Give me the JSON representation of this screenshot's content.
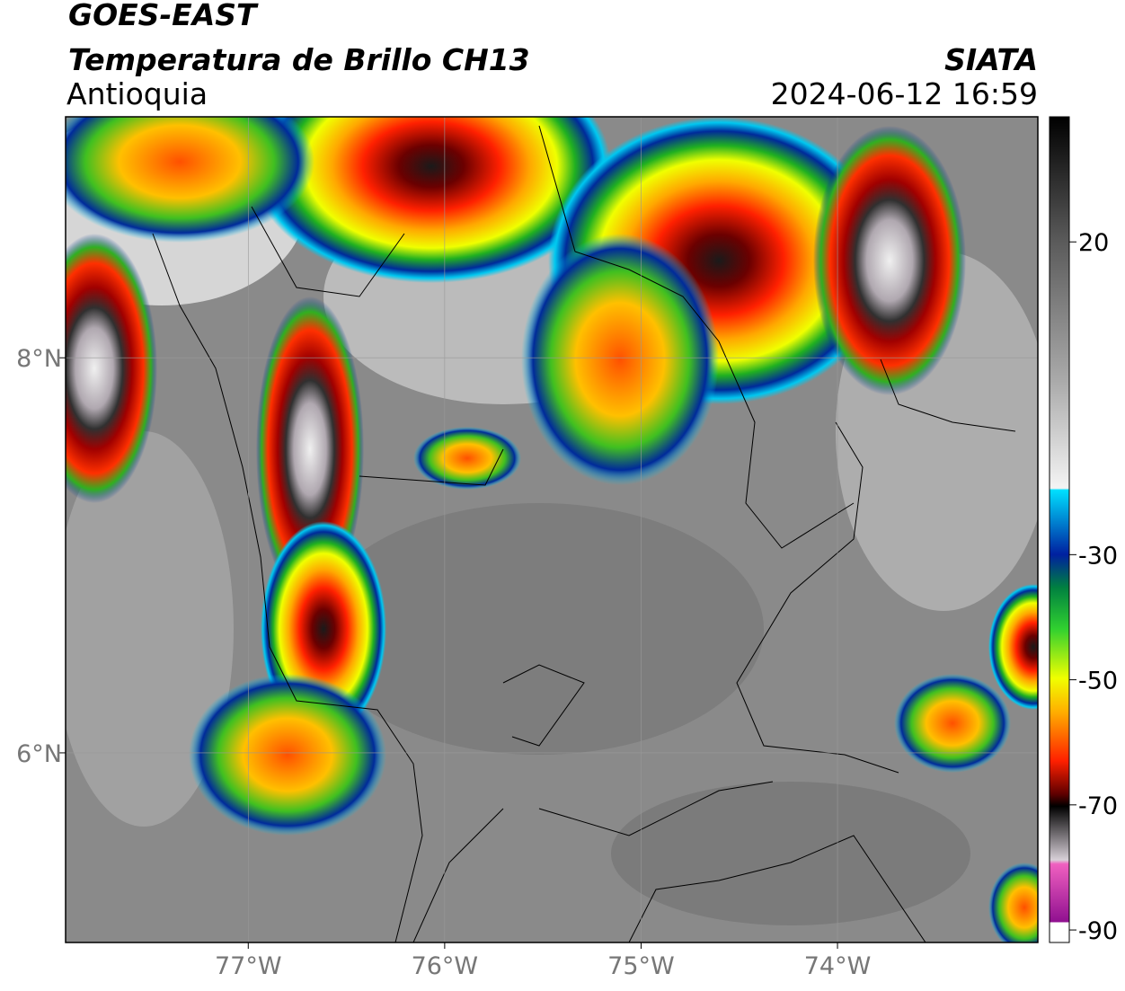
{
  "header": {
    "title": "GOES-EAST",
    "subtitle": "Temperatura de Brillo CH13",
    "region": "Antioquia",
    "source": "SIATA",
    "timestamp": "2024-06-12 16:59"
  },
  "map": {
    "lonlim": [
      -77.93,
      -72.98
    ],
    "latlim": [
      5.04,
      9.22
    ],
    "lonticks": [
      {
        "value": -77,
        "label": "77°W"
      },
      {
        "value": -76,
        "label": "76°W"
      },
      {
        "value": -75,
        "label": "75°W"
      },
      {
        "value": -74,
        "label": "74°W"
      }
    ],
    "latticks": [
      {
        "value": 8,
        "label": "8°N"
      },
      {
        "value": 6,
        "label": "6°N"
      }
    ]
  },
  "colorbar": {
    "range": [
      -92,
      40
    ],
    "ticks": [
      20,
      -30,
      -50,
      -70,
      -90
    ]
  }
}
